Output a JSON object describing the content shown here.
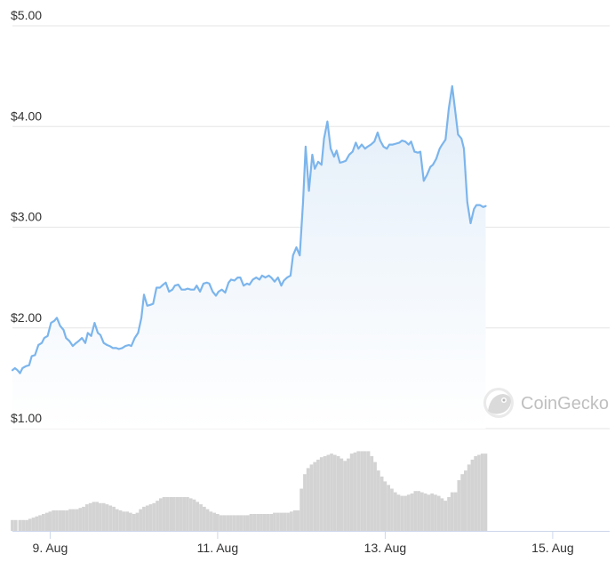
{
  "chart_data": {
    "type": "area",
    "title": "",
    "xlabel": "",
    "ylabel": "",
    "ylim": [
      1.0,
      5.0
    ],
    "y_ticks": [
      "$1.00",
      "$2.00",
      "$3.00",
      "$4.00",
      "$5.00"
    ],
    "y_tick_values": [
      1,
      2,
      3,
      4,
      5
    ],
    "x_ticks": [
      "9. Aug",
      "11. Aug",
      "13. Aug",
      "15. Aug"
    ],
    "x_tick_values": [
      9.0,
      11.0,
      13.0,
      15.0
    ],
    "xlim": [
      8.55,
      15.68
    ],
    "grid": true,
    "legend": "none",
    "colors": {
      "line": "#7cb5ec",
      "area_top": "#e3eef9",
      "volume": "#d3d3d3",
      "grid": "#e6e6e6",
      "axis": "#ccd6eb"
    },
    "series": [
      {
        "values": [
          [
            8.55,
            1.58
          ],
          [
            8.58,
            1.6
          ],
          [
            8.61,
            1.58
          ],
          [
            8.64,
            1.55
          ],
          [
            8.67,
            1.6
          ],
          [
            8.71,
            1.62
          ],
          [
            8.75,
            1.63
          ],
          [
            8.78,
            1.72
          ],
          [
            8.82,
            1.73
          ],
          [
            8.86,
            1.83
          ],
          [
            8.9,
            1.85
          ],
          [
            8.93,
            1.9
          ],
          [
            8.97,
            1.92
          ],
          [
            9.01,
            2.05
          ],
          [
            9.05,
            2.07
          ],
          [
            9.08,
            2.1
          ],
          [
            9.12,
            2.02
          ],
          [
            9.16,
            1.98
          ],
          [
            9.19,
            1.9
          ],
          [
            9.23,
            1.87
          ],
          [
            9.27,
            1.82
          ],
          [
            9.31,
            1.85
          ],
          [
            9.34,
            1.87
          ],
          [
            9.38,
            1.9
          ],
          [
            9.42,
            1.85
          ],
          [
            9.45,
            1.95
          ],
          [
            9.49,
            1.92
          ],
          [
            9.53,
            2.05
          ],
          [
            9.57,
            1.95
          ],
          [
            9.6,
            1.93
          ],
          [
            9.64,
            1.85
          ],
          [
            9.68,
            1.83
          ],
          [
            9.71,
            1.82
          ],
          [
            9.75,
            1.8
          ],
          [
            9.79,
            1.8
          ],
          [
            9.82,
            1.79
          ],
          [
            9.86,
            1.8
          ],
          [
            9.9,
            1.82
          ],
          [
            9.94,
            1.83
          ],
          [
            9.97,
            1.82
          ],
          [
            10.01,
            1.9
          ],
          [
            10.05,
            1.95
          ],
          [
            10.09,
            2.1
          ],
          [
            10.12,
            2.33
          ],
          [
            10.16,
            2.22
          ],
          [
            10.2,
            2.23
          ],
          [
            10.23,
            2.24
          ],
          [
            10.27,
            2.4
          ],
          [
            10.31,
            2.4
          ],
          [
            10.35,
            2.43
          ],
          [
            10.38,
            2.45
          ],
          [
            10.42,
            2.36
          ],
          [
            10.46,
            2.38
          ],
          [
            10.49,
            2.42
          ],
          [
            10.53,
            2.43
          ],
          [
            10.57,
            2.38
          ],
          [
            10.61,
            2.38
          ],
          [
            10.64,
            2.39
          ],
          [
            10.68,
            2.38
          ],
          [
            10.72,
            2.38
          ],
          [
            10.75,
            2.42
          ],
          [
            10.79,
            2.36
          ],
          [
            10.83,
            2.44
          ],
          [
            10.87,
            2.45
          ],
          [
            10.9,
            2.44
          ],
          [
            10.94,
            2.36
          ],
          [
            10.98,
            2.32
          ],
          [
            11.01,
            2.36
          ],
          [
            11.05,
            2.38
          ],
          [
            11.09,
            2.35
          ],
          [
            11.13,
            2.45
          ],
          [
            11.16,
            2.48
          ],
          [
            11.2,
            2.47
          ],
          [
            11.24,
            2.5
          ],
          [
            11.27,
            2.5
          ],
          [
            11.31,
            2.42
          ],
          [
            11.35,
            2.44
          ],
          [
            11.38,
            2.43
          ],
          [
            11.42,
            2.48
          ],
          [
            11.46,
            2.5
          ],
          [
            11.5,
            2.48
          ],
          [
            11.53,
            2.52
          ],
          [
            11.57,
            2.5
          ],
          [
            11.61,
            2.52
          ],
          [
            11.64,
            2.5
          ],
          [
            11.68,
            2.46
          ],
          [
            11.72,
            2.5
          ],
          [
            11.76,
            2.42
          ],
          [
            11.79,
            2.47
          ],
          [
            11.83,
            2.5
          ],
          [
            11.87,
            2.52
          ],
          [
            11.9,
            2.72
          ],
          [
            11.94,
            2.8
          ],
          [
            11.98,
            2.72
          ],
          [
            12.02,
            3.25
          ],
          [
            12.05,
            3.8
          ],
          [
            12.09,
            3.36
          ],
          [
            12.13,
            3.72
          ],
          [
            12.16,
            3.58
          ],
          [
            12.2,
            3.65
          ],
          [
            12.24,
            3.62
          ],
          [
            12.27,
            3.88
          ],
          [
            12.31,
            4.05
          ],
          [
            12.35,
            3.78
          ],
          [
            12.39,
            3.7
          ],
          [
            12.42,
            3.76
          ],
          [
            12.46,
            3.64
          ],
          [
            12.5,
            3.65
          ],
          [
            12.53,
            3.66
          ],
          [
            12.57,
            3.72
          ],
          [
            12.61,
            3.75
          ],
          [
            12.65,
            3.84
          ],
          [
            12.68,
            3.78
          ],
          [
            12.72,
            3.82
          ],
          [
            12.76,
            3.78
          ],
          [
            12.79,
            3.8
          ],
          [
            12.83,
            3.82
          ],
          [
            12.87,
            3.85
          ],
          [
            12.91,
            3.94
          ],
          [
            12.94,
            3.86
          ],
          [
            12.98,
            3.8
          ],
          [
            13.02,
            3.78
          ],
          [
            13.05,
            3.82
          ],
          [
            13.09,
            3.82
          ],
          [
            13.13,
            3.83
          ],
          [
            13.17,
            3.84
          ],
          [
            13.2,
            3.86
          ],
          [
            13.24,
            3.85
          ],
          [
            13.28,
            3.82
          ],
          [
            13.31,
            3.85
          ],
          [
            13.35,
            3.75
          ],
          [
            13.39,
            3.74
          ],
          [
            13.42,
            3.75
          ],
          [
            13.46,
            3.46
          ],
          [
            13.5,
            3.52
          ],
          [
            13.54,
            3.6
          ],
          [
            13.57,
            3.62
          ],
          [
            13.61,
            3.68
          ],
          [
            13.65,
            3.78
          ],
          [
            13.68,
            3.82
          ],
          [
            13.72,
            3.87
          ],
          [
            13.76,
            4.18
          ],
          [
            13.8,
            4.4
          ],
          [
            13.83,
            4.2
          ],
          [
            13.87,
            3.92
          ],
          [
            13.91,
            3.88
          ],
          [
            13.94,
            3.78
          ],
          [
            13.98,
            3.25
          ],
          [
            14.02,
            3.04
          ],
          [
            14.06,
            3.18
          ],
          [
            14.09,
            3.22
          ],
          [
            14.13,
            3.22
          ],
          [
            14.17,
            3.2
          ],
          [
            14.2,
            3.21
          ]
        ]
      }
    ],
    "volume_series": [
      [
        8.55,
        0.09
      ],
      [
        8.59,
        0.09
      ],
      [
        8.64,
        0.09
      ],
      [
        8.68,
        0.09
      ],
      [
        8.72,
        0.09
      ],
      [
        8.76,
        0.1
      ],
      [
        8.8,
        0.11
      ],
      [
        8.84,
        0.12
      ],
      [
        8.88,
        0.13
      ],
      [
        8.92,
        0.14
      ],
      [
        8.96,
        0.15
      ],
      [
        9.0,
        0.16
      ],
      [
        9.04,
        0.17
      ],
      [
        9.08,
        0.17
      ],
      [
        9.12,
        0.17
      ],
      [
        9.16,
        0.17
      ],
      [
        9.2,
        0.17
      ],
      [
        9.24,
        0.18
      ],
      [
        9.28,
        0.18
      ],
      [
        9.32,
        0.18
      ],
      [
        9.36,
        0.19
      ],
      [
        9.4,
        0.2
      ],
      [
        9.44,
        0.22
      ],
      [
        9.48,
        0.23
      ],
      [
        9.52,
        0.24
      ],
      [
        9.56,
        0.24
      ],
      [
        9.6,
        0.23
      ],
      [
        9.64,
        0.23
      ],
      [
        9.68,
        0.22
      ],
      [
        9.72,
        0.21
      ],
      [
        9.76,
        0.2
      ],
      [
        9.8,
        0.18
      ],
      [
        9.84,
        0.17
      ],
      [
        9.88,
        0.16
      ],
      [
        9.92,
        0.16
      ],
      [
        9.96,
        0.15
      ],
      [
        10.0,
        0.14
      ],
      [
        10.04,
        0.15
      ],
      [
        10.08,
        0.18
      ],
      [
        10.12,
        0.2
      ],
      [
        10.16,
        0.21
      ],
      [
        10.2,
        0.22
      ],
      [
        10.24,
        0.23
      ],
      [
        10.28,
        0.25
      ],
      [
        10.32,
        0.27
      ],
      [
        10.36,
        0.28
      ],
      [
        10.4,
        0.28
      ],
      [
        10.44,
        0.28
      ],
      [
        10.48,
        0.28
      ],
      [
        10.52,
        0.28
      ],
      [
        10.56,
        0.28
      ],
      [
        10.6,
        0.28
      ],
      [
        10.64,
        0.28
      ],
      [
        10.68,
        0.27
      ],
      [
        10.72,
        0.26
      ],
      [
        10.76,
        0.24
      ],
      [
        10.8,
        0.22
      ],
      [
        10.84,
        0.2
      ],
      [
        10.88,
        0.18
      ],
      [
        10.92,
        0.16
      ],
      [
        10.96,
        0.15
      ],
      [
        11.0,
        0.14
      ],
      [
        11.04,
        0.13
      ],
      [
        11.08,
        0.13
      ],
      [
        11.12,
        0.13
      ],
      [
        11.16,
        0.13
      ],
      [
        11.2,
        0.13
      ],
      [
        11.24,
        0.13
      ],
      [
        11.28,
        0.13
      ],
      [
        11.32,
        0.13
      ],
      [
        11.36,
        0.13
      ],
      [
        11.4,
        0.14
      ],
      [
        11.44,
        0.14
      ],
      [
        11.48,
        0.14
      ],
      [
        11.52,
        0.14
      ],
      [
        11.56,
        0.14
      ],
      [
        11.6,
        0.14
      ],
      [
        11.64,
        0.14
      ],
      [
        11.68,
        0.15
      ],
      [
        11.72,
        0.15
      ],
      [
        11.76,
        0.15
      ],
      [
        11.8,
        0.15
      ],
      [
        11.84,
        0.15
      ],
      [
        11.88,
        0.16
      ],
      [
        11.92,
        0.17
      ],
      [
        11.96,
        0.17
      ],
      [
        12.0,
        0.35
      ],
      [
        12.04,
        0.47
      ],
      [
        12.08,
        0.52
      ],
      [
        12.12,
        0.55
      ],
      [
        12.16,
        0.57
      ],
      [
        12.2,
        0.59
      ],
      [
        12.24,
        0.61
      ],
      [
        12.28,
        0.62
      ],
      [
        12.32,
        0.63
      ],
      [
        12.36,
        0.64
      ],
      [
        12.4,
        0.63
      ],
      [
        12.44,
        0.62
      ],
      [
        12.48,
        0.6
      ],
      [
        12.52,
        0.58
      ],
      [
        12.56,
        0.6
      ],
      [
        12.6,
        0.64
      ],
      [
        12.64,
        0.65
      ],
      [
        12.68,
        0.66
      ],
      [
        12.72,
        0.66
      ],
      [
        12.76,
        0.66
      ],
      [
        12.8,
        0.66
      ],
      [
        12.84,
        0.62
      ],
      [
        12.88,
        0.57
      ],
      [
        12.92,
        0.5
      ],
      [
        12.96,
        0.45
      ],
      [
        13.0,
        0.41
      ],
      [
        13.04,
        0.38
      ],
      [
        13.08,
        0.35
      ],
      [
        13.12,
        0.32
      ],
      [
        13.16,
        0.3
      ],
      [
        13.2,
        0.29
      ],
      [
        13.24,
        0.29
      ],
      [
        13.28,
        0.3
      ],
      [
        13.32,
        0.31
      ],
      [
        13.36,
        0.33
      ],
      [
        13.4,
        0.33
      ],
      [
        13.44,
        0.32
      ],
      [
        13.48,
        0.31
      ],
      [
        13.52,
        0.3
      ],
      [
        13.56,
        0.31
      ],
      [
        13.6,
        0.3
      ],
      [
        13.64,
        0.29
      ],
      [
        13.68,
        0.27
      ],
      [
        13.72,
        0.25
      ],
      [
        13.76,
        0.28
      ],
      [
        13.8,
        0.32
      ],
      [
        13.84,
        0.32
      ],
      [
        13.88,
        0.42
      ],
      [
        13.92,
        0.47
      ],
      [
        13.96,
        0.5
      ],
      [
        14.0,
        0.55
      ],
      [
        14.04,
        0.59
      ],
      [
        14.08,
        0.62
      ],
      [
        14.12,
        0.63
      ],
      [
        14.16,
        0.64
      ],
      [
        14.2,
        0.64
      ]
    ]
  },
  "watermark": {
    "text": "CoinGecko",
    "icon": "gecko-logo-icon"
  }
}
